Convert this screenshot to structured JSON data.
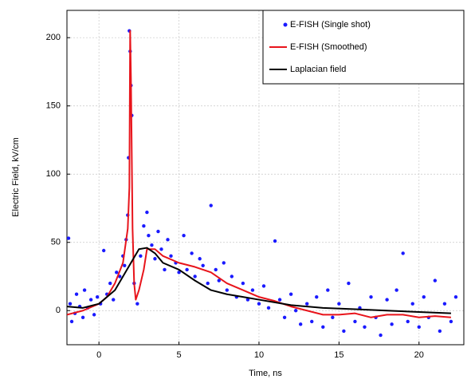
{
  "chart_data": {
    "type": "line",
    "xlabel": "Time, ns",
    "ylabel": "Electric Field, kV/cm",
    "xlim": [
      -2,
      22.8
    ],
    "ylim": [
      -25,
      220
    ],
    "xticks": [
      0,
      5,
      10,
      15,
      20
    ],
    "yticks": [
      0,
      50,
      100,
      150,
      200
    ],
    "grid": true,
    "legend": "upper right",
    "series": [
      {
        "name": "E-FISH (Single shot)",
        "style": "scatter",
        "color": "#1a1aff",
        "x": [
          -1.9,
          -1.8,
          -1.7,
          -1.5,
          -1.4,
          -1.2,
          -1.0,
          -0.9,
          -0.7,
          -0.5,
          -0.3,
          -0.1,
          0.1,
          0.3,
          0.5,
          0.7,
          0.9,
          1.1,
          1.3,
          1.5,
          1.6,
          1.7,
          1.8,
          1.85,
          1.9,
          1.95,
          2.0,
          2.05,
          2.2,
          2.4,
          2.6,
          2.8,
          3.0,
          3.1,
          3.3,
          3.5,
          3.7,
          3.9,
          4.1,
          4.3,
          4.5,
          4.8,
          5.0,
          5.3,
          5.5,
          5.8,
          6.0,
          6.3,
          6.5,
          6.8,
          7.0,
          7.3,
          7.5,
          7.8,
          8.0,
          8.3,
          8.6,
          9.0,
          9.3,
          9.6,
          10.0,
          10.3,
          10.6,
          11.0,
          11.3,
          11.6,
          12.0,
          12.3,
          12.6,
          13.0,
          13.3,
          13.6,
          14.0,
          14.3,
          14.6,
          15.0,
          15.3,
          15.6,
          16.0,
          16.3,
          16.6,
          17.0,
          17.3,
          17.6,
          18.0,
          18.3,
          18.6,
          19.0,
          19.3,
          19.6,
          20.0,
          20.3,
          20.6,
          21.0,
          21.3,
          21.6,
          22.0,
          22.3
        ],
        "values": [
          53,
          5,
          -8,
          -2,
          12,
          3,
          -5,
          15,
          2,
          8,
          -3,
          10,
          5,
          44,
          12,
          20,
          8,
          28,
          25,
          40,
          33,
          52,
          70,
          112,
          205,
          190,
          165,
          143,
          20,
          5,
          40,
          62,
          72,
          55,
          48,
          38,
          58,
          45,
          30,
          52,
          40,
          35,
          28,
          55,
          30,
          42,
          25,
          38,
          33,
          20,
          77,
          30,
          22,
          35,
          15,
          25,
          10,
          20,
          8,
          15,
          5,
          18,
          2,
          51,
          8,
          -5,
          12,
          0,
          -10,
          5,
          -8,
          10,
          -12,
          15,
          -5,
          5,
          -15,
          20,
          -8,
          2,
          -12,
          10,
          -5,
          -18,
          8,
          -10,
          15,
          42,
          -8,
          5,
          -12,
          10,
          -5,
          22,
          -15,
          5,
          -8,
          10
        ]
      },
      {
        "name": "E-FISH (Smoothed)",
        "style": "line",
        "color": "#e8141b",
        "x": [
          -2,
          -1,
          0,
          0.5,
          1,
          1.5,
          1.8,
          1.9,
          1.95,
          2.0,
          2.1,
          2.2,
          2.3,
          2.5,
          2.8,
          3,
          3.5,
          4,
          5,
          6,
          7,
          8,
          9,
          10,
          11,
          12,
          13,
          14,
          15,
          16,
          17,
          18,
          19,
          20,
          21,
          22
        ],
        "values": [
          -3,
          0,
          5,
          10,
          20,
          35,
          60,
          90,
          205,
          170,
          60,
          20,
          8,
          15,
          30,
          45,
          45,
          40,
          35,
          32,
          28,
          20,
          15,
          10,
          7,
          3,
          0,
          -3,
          -3,
          -2,
          -5,
          -3,
          -3,
          -5,
          -4,
          -5
        ]
      },
      {
        "name": "Laplacian field",
        "style": "line",
        "color": "#000000",
        "x": [
          -2,
          -1,
          0,
          1,
          2,
          2.5,
          3,
          3.5,
          4,
          5,
          6,
          7,
          8,
          9,
          10,
          12,
          14,
          16,
          18,
          20,
          22
        ],
        "values": [
          3,
          2,
          5,
          15,
          35,
          45,
          46,
          42,
          35,
          30,
          22,
          15,
          12,
          10,
          8,
          4,
          2,
          1,
          0,
          -1,
          -2
        ]
      }
    ]
  }
}
